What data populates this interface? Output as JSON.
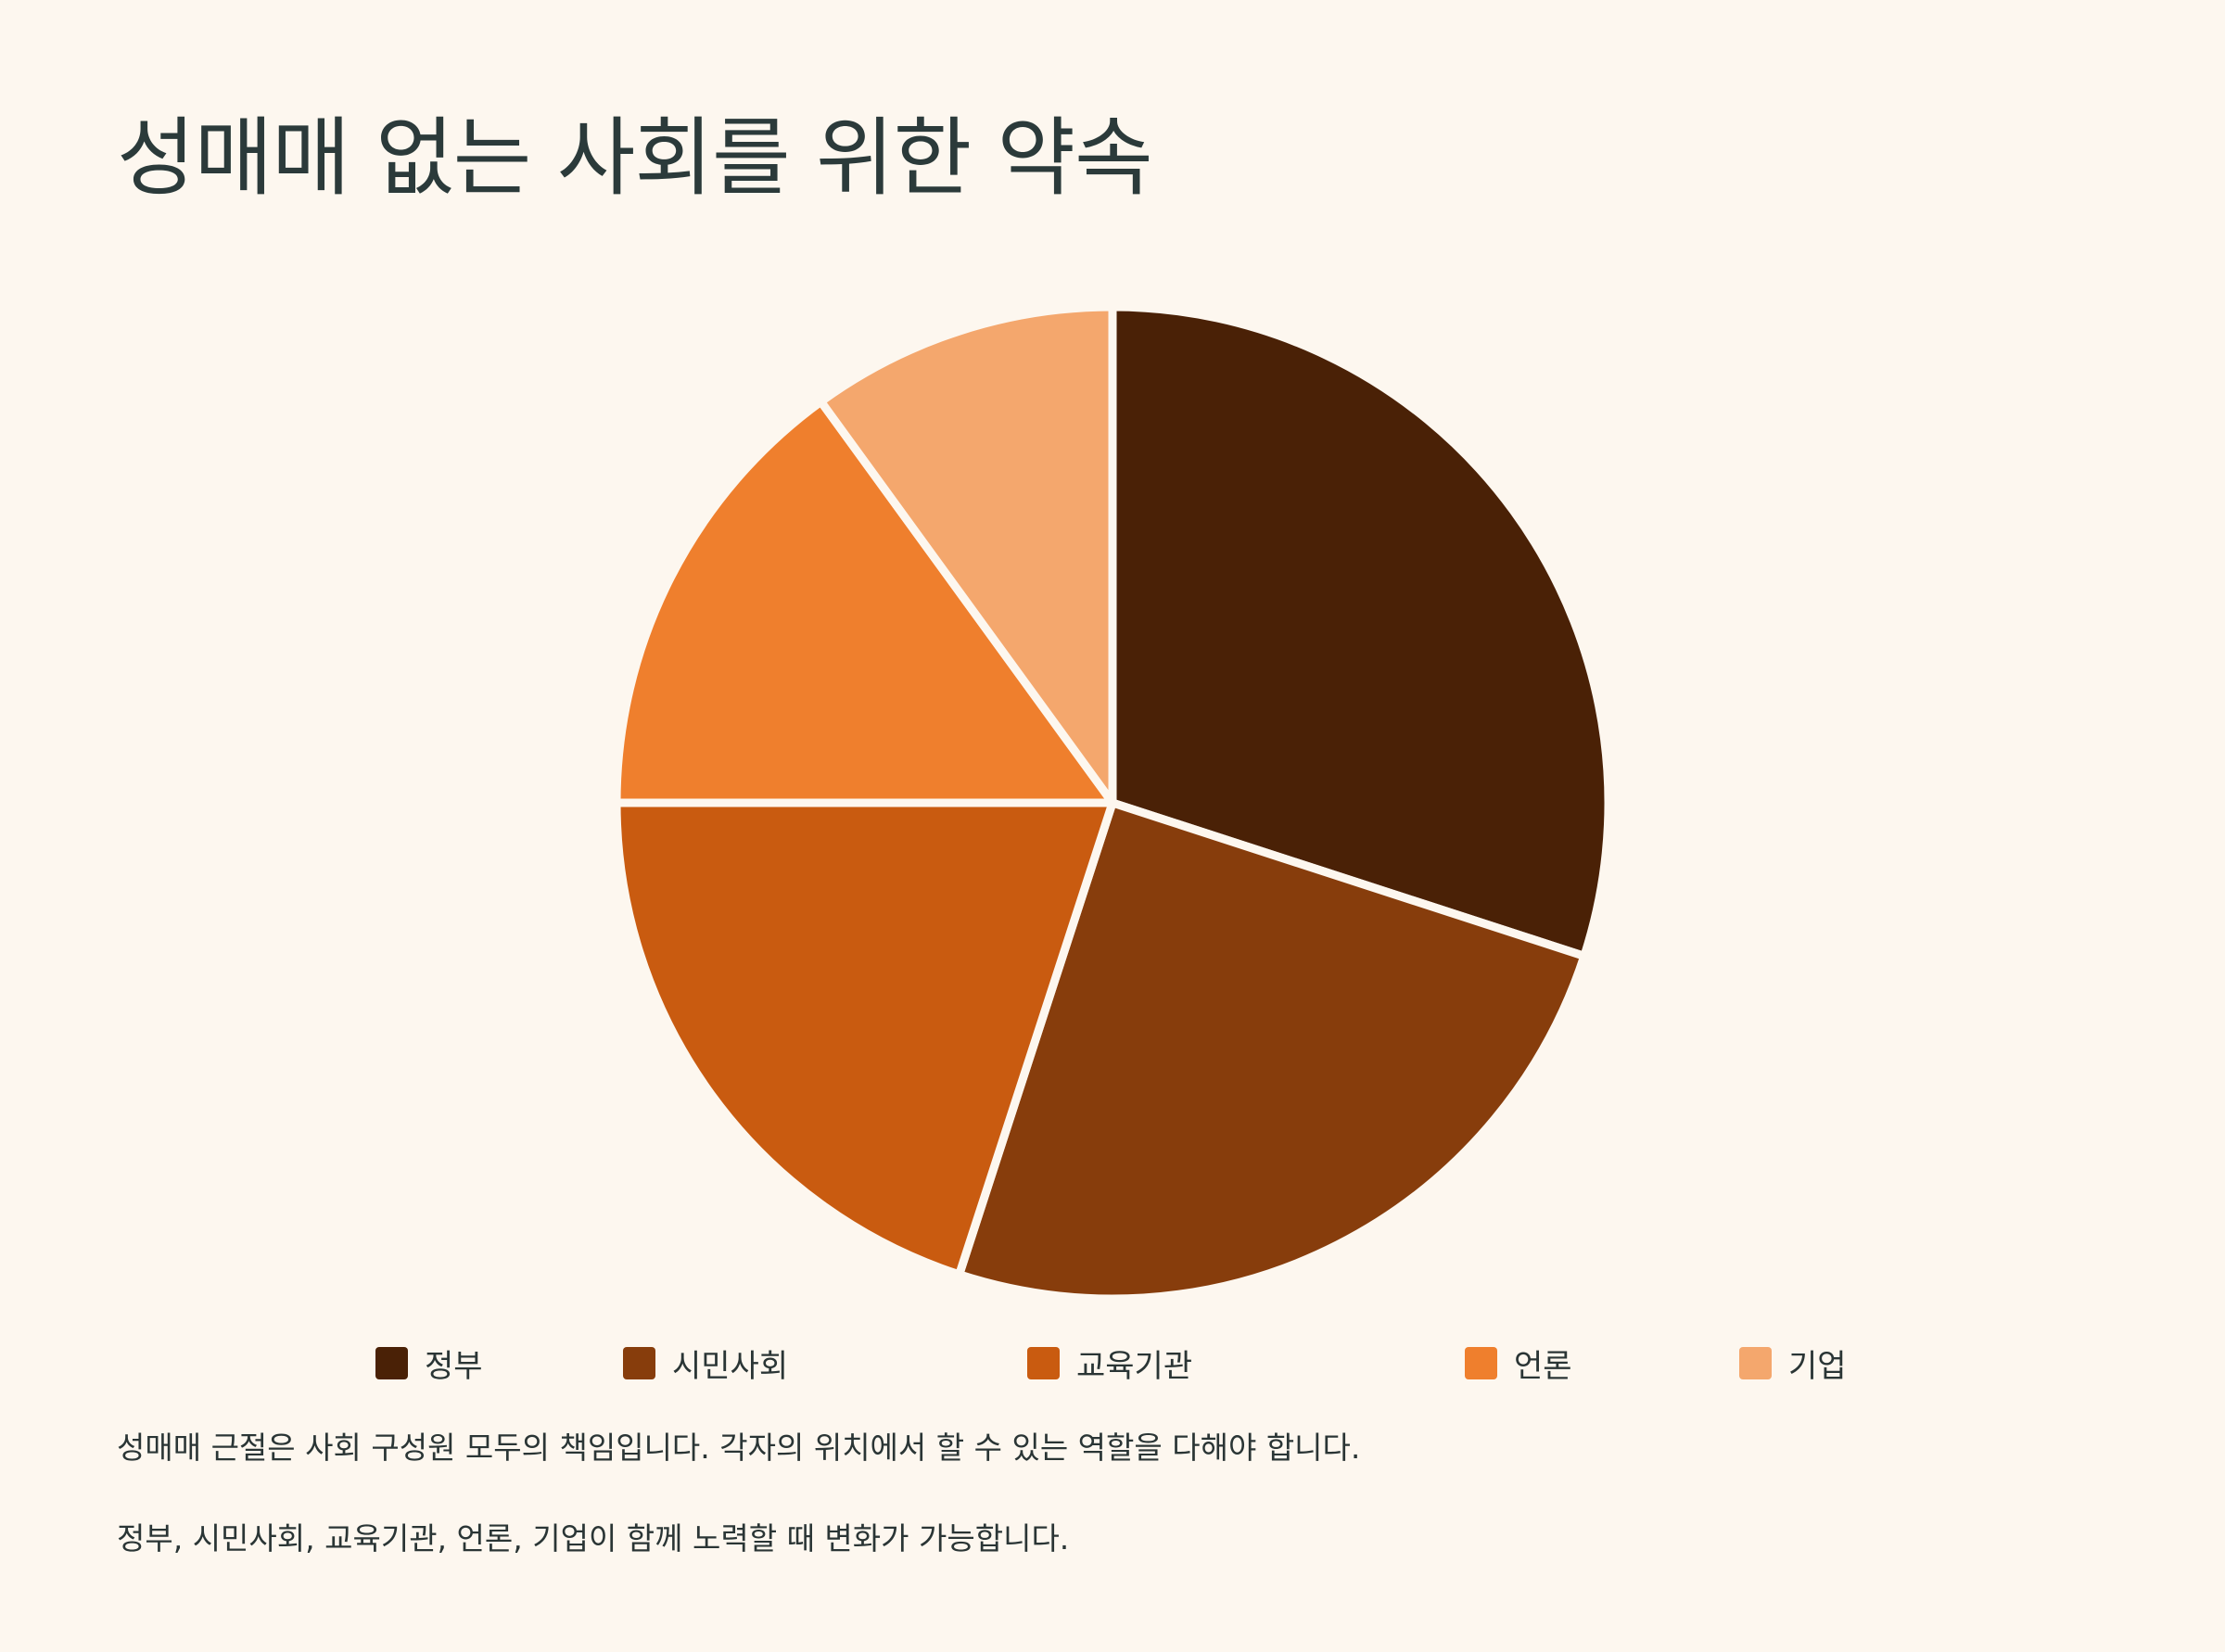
{
  "title": "성매매 없는 사회를 위한 약속",
  "chart_data": {
    "type": "pie",
    "categories": [
      "정부",
      "시민사회",
      "교육기관",
      "언론",
      "기업"
    ],
    "values": [
      30,
      25,
      20,
      15,
      10
    ],
    "colors": [
      "#4a2106",
      "#873d0c",
      "#c95b10",
      "#ef7f2d",
      "#f4a76d"
    ],
    "legend_position": "bottom",
    "start_angle": "top, clockwise"
  },
  "description": [
    "성매매 근절은 사회 구성원 모두의 책임입니다. 각자의 위치에서 할 수 있는 역할을 다해야 합니다.",
    "정부, 시민사회, 교육기관, 언론, 기업이 함께 노력할 때 변화가 가능합니다."
  ]
}
